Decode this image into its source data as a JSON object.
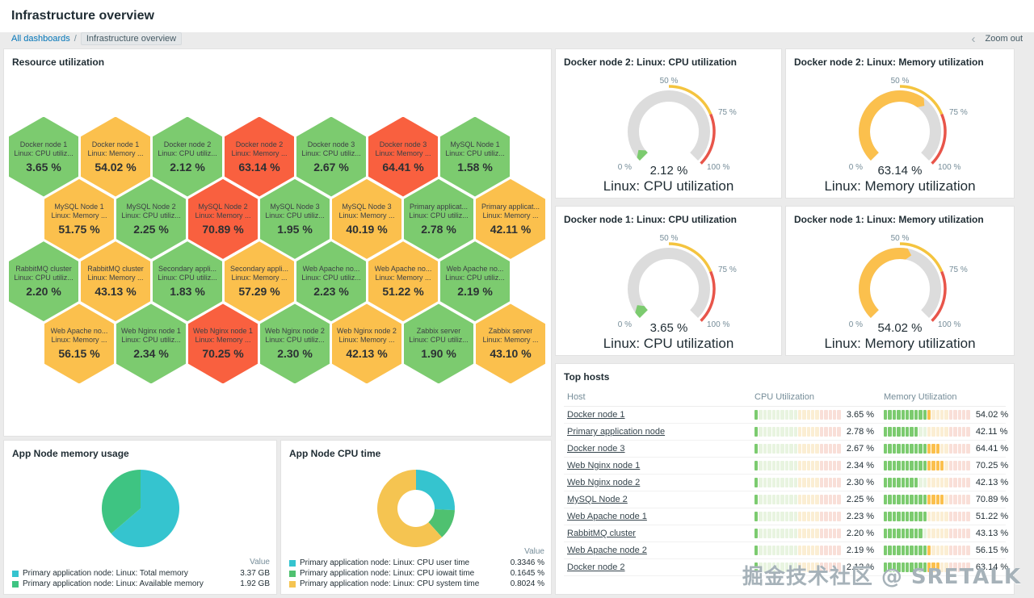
{
  "page": {
    "title": "Infrastructure overview"
  },
  "breadcrumb": {
    "all_dashboards": "All dashboards",
    "separator": "/",
    "current": "Infrastructure overview",
    "chevron": "‹",
    "zoom_out": "Zoom out"
  },
  "colors": {
    "green": "#7CCB6F",
    "orange": "#FBC04D",
    "red": "#F9603F",
    "pale_green": "#E8F4E0",
    "pale_orange": "#FBEED3",
    "pale_red": "#F9DFD8",
    "gauge_track": "#DCDCDC",
    "threshold_warn": "#F4C43F",
    "threshold_high": "#E8554A"
  },
  "honeycomb": {
    "title": "Resource utilization",
    "cells": [
      {
        "host": "Docker node 1",
        "item": "Linux: CPU utiliz...",
        "value": "3.65 %",
        "level": "green"
      },
      {
        "host": "Docker node 1",
        "item": "Linux: Memory ...",
        "value": "54.02 %",
        "level": "orange"
      },
      {
        "host": "Docker node 2",
        "item": "Linux: CPU utiliz...",
        "value": "2.12 %",
        "level": "green"
      },
      {
        "host": "Docker node 2",
        "item": "Linux: Memory ...",
        "value": "63.14 %",
        "level": "red"
      },
      {
        "host": "Docker node 3",
        "item": "Linux: CPU utiliz...",
        "value": "2.67 %",
        "level": "green"
      },
      {
        "host": "Docker node 3",
        "item": "Linux: Memory ...",
        "value": "64.41 %",
        "level": "red"
      },
      {
        "host": "MySQL Node 1",
        "item": "Linux: CPU utiliz...",
        "value": "1.58 %",
        "level": "green"
      },
      {
        "host": "MySQL Node 1",
        "item": "Linux: Memory ...",
        "value": "51.75 %",
        "level": "orange"
      },
      {
        "host": "MySQL Node 2",
        "item": "Linux: CPU utiliz...",
        "value": "2.25 %",
        "level": "green"
      },
      {
        "host": "MySQL Node 2",
        "item": "Linux: Memory ...",
        "value": "70.89 %",
        "level": "red"
      },
      {
        "host": "MySQL Node 3",
        "item": "Linux: CPU utiliz...",
        "value": "1.95 %",
        "level": "green"
      },
      {
        "host": "MySQL Node 3",
        "item": "Linux: Memory ...",
        "value": "40.19 %",
        "level": "orange"
      },
      {
        "host": "Primary applicat...",
        "item": "Linux: CPU utiliz...",
        "value": "2.78 %",
        "level": "green"
      },
      {
        "host": "Primary applicat...",
        "item": "Linux: Memory ...",
        "value": "42.11 %",
        "level": "orange"
      },
      {
        "host": "RabbitMQ cluster",
        "item": "Linux: CPU utiliz...",
        "value": "2.20 %",
        "level": "green"
      },
      {
        "host": "RabbitMQ cluster",
        "item": "Linux: Memory ...",
        "value": "43.13 %",
        "level": "orange"
      },
      {
        "host": "Secondary appli...",
        "item": "Linux: CPU utiliz...",
        "value": "1.83 %",
        "level": "green"
      },
      {
        "host": "Secondary appli...",
        "item": "Linux: Memory ...",
        "value": "57.29 %",
        "level": "orange"
      },
      {
        "host": "Web Apache no...",
        "item": "Linux: CPU utiliz...",
        "value": "2.23 %",
        "level": "green"
      },
      {
        "host": "Web Apache no...",
        "item": "Linux: Memory ...",
        "value": "51.22 %",
        "level": "orange"
      },
      {
        "host": "Web Apache no...",
        "item": "Linux: CPU utiliz...",
        "value": "2.19 %",
        "level": "green"
      },
      {
        "host": "Web Apache no...",
        "item": "Linux: Memory ...",
        "value": "56.15 %",
        "level": "orange"
      },
      {
        "host": "Web Nginx node 1",
        "item": "Linux: CPU utiliz...",
        "value": "2.34 %",
        "level": "green"
      },
      {
        "host": "Web Nginx node 1",
        "item": "Linux: Memory ...",
        "value": "70.25 %",
        "level": "red"
      },
      {
        "host": "Web Nginx node 2",
        "item": "Linux: CPU utiliz...",
        "value": "2.30 %",
        "level": "green"
      },
      {
        "host": "Web Nginx node 2",
        "item": "Linux: Memory ...",
        "value": "42.13 %",
        "level": "orange"
      },
      {
        "host": "Zabbix server",
        "item": "Linux: CPU utiliz...",
        "value": "1.90 %",
        "level": "green"
      },
      {
        "host": "Zabbix server",
        "item": "Linux: Memory ...",
        "value": "43.10 %",
        "level": "orange"
      }
    ]
  },
  "gauges": [
    {
      "title": "Docker node 2: Linux: CPU utilization",
      "value": 2.12,
      "value_label": "2.12 %",
      "footer": "Linux: CPU utilization",
      "level": "green",
      "ticks": [
        "0 %",
        "50 %",
        "75 %",
        "100 %"
      ]
    },
    {
      "title": "Docker node 2: Linux: Memory utilization",
      "value": 63.14,
      "value_label": "63.14 %",
      "footer": "Linux: Memory utilization",
      "level": "orange",
      "ticks": [
        "0 %",
        "50 %",
        "75 %",
        "100 %"
      ]
    },
    {
      "title": "Docker node 1: Linux: CPU utilization",
      "value": 3.65,
      "value_label": "3.65 %",
      "footer": "Linux: CPU utilization",
      "level": "green",
      "ticks": [
        "0 %",
        "50 %",
        "75 %",
        "100 %"
      ]
    },
    {
      "title": "Docker node 1: Linux: Memory utilization",
      "value": 54.02,
      "value_label": "54.02 %",
      "footer": "Linux: Memory utilization",
      "level": "orange",
      "ticks": [
        "0 %",
        "50 %",
        "75 %",
        "100 %"
      ]
    }
  ],
  "top_hosts": {
    "title": "Top hosts",
    "columns": [
      "Host",
      "CPU Utilization",
      "Memory Utilization"
    ],
    "rows": [
      {
        "host": "Docker node 1",
        "cpu": 3.65,
        "cpu_label": "3.65 %",
        "mem": 54.02,
        "mem_label": "54.02 %"
      },
      {
        "host": "Primary application node",
        "cpu": 2.78,
        "cpu_label": "2.78 %",
        "mem": 42.11,
        "mem_label": "42.11 %"
      },
      {
        "host": "Docker node 3",
        "cpu": 2.67,
        "cpu_label": "2.67 %",
        "mem": 64.41,
        "mem_label": "64.41 %"
      },
      {
        "host": "Web Nginx node 1",
        "cpu": 2.34,
        "cpu_label": "2.34 %",
        "mem": 70.25,
        "mem_label": "70.25 %"
      },
      {
        "host": "Web Nginx node 2",
        "cpu": 2.3,
        "cpu_label": "2.30 %",
        "mem": 42.13,
        "mem_label": "42.13 %"
      },
      {
        "host": "MySQL Node 2",
        "cpu": 2.25,
        "cpu_label": "2.25 %",
        "mem": 70.89,
        "mem_label": "70.89 %"
      },
      {
        "host": "Web Apache node 1",
        "cpu": 2.23,
        "cpu_label": "2.23 %",
        "mem": 51.22,
        "mem_label": "51.22 %"
      },
      {
        "host": "RabbitMQ cluster",
        "cpu": 2.2,
        "cpu_label": "2.20 %",
        "mem": 43.13,
        "mem_label": "43.13 %"
      },
      {
        "host": "Web Apache node 2",
        "cpu": 2.19,
        "cpu_label": "2.19 %",
        "mem": 56.15,
        "mem_label": "56.15 %"
      },
      {
        "host": "Docker node 2",
        "cpu": 2.12,
        "cpu_label": "2.12 %",
        "mem": 63.14,
        "mem_label": "63.14 %"
      }
    ]
  },
  "memory_chart": {
    "title": "App Node memory usage",
    "type": "pie",
    "value_header": "Value",
    "items": [
      {
        "label": "Primary application node: Linux: Total memory",
        "value": 3.37,
        "value_label": "3.37 GB",
        "color": "#35C4CF"
      },
      {
        "label": "Primary application node: Linux: Available memory",
        "value": 1.92,
        "value_label": "1.92 GB",
        "color": "#3EC482"
      }
    ]
  },
  "cpu_chart": {
    "title": "App Node CPU time",
    "type": "donut",
    "value_header": "Value",
    "items": [
      {
        "label": "Primary application node: Linux: CPU user time",
        "value": 0.3346,
        "value_label": "0.3346 %",
        "color": "#35C4CF"
      },
      {
        "label": "Primary application node: Linux: CPU iowait time",
        "value": 0.1645,
        "value_label": "0.1645 %",
        "color": "#4FC170"
      },
      {
        "label": "Primary application node: Linux: CPU system time",
        "value": 0.8024,
        "value_label": "0.8024 %",
        "color": "#F5C451"
      }
    ]
  },
  "chart_data": [
    {
      "type": "pie",
      "title": "App Node memory usage",
      "labels": [
        "Primary application node: Linux: Total memory",
        "Primary application node: Linux: Available memory"
      ],
      "values": [
        3.37,
        1.92
      ],
      "unit": "GB",
      "legend_position": "bottom"
    },
    {
      "type": "pie",
      "title": "App Node CPU time",
      "donut": true,
      "labels": [
        "Primary application node: Linux: CPU user time",
        "Primary application node: Linux: CPU iowait time",
        "Primary application node: Linux: CPU system time"
      ],
      "values": [
        0.3346,
        0.1645,
        0.8024
      ],
      "unit": "%",
      "legend_position": "bottom"
    },
    {
      "type": "gauge",
      "title": "Docker node 2: Linux: CPU utilization",
      "value": 2.12,
      "range": [
        0,
        100
      ],
      "ticks": [
        0,
        50,
        75,
        100
      ]
    },
    {
      "type": "gauge",
      "title": "Docker node 2: Linux: Memory utilization",
      "value": 63.14,
      "range": [
        0,
        100
      ],
      "ticks": [
        0,
        50,
        75,
        100
      ]
    },
    {
      "type": "gauge",
      "title": "Docker node 1: Linux: CPU utilization",
      "value": 3.65,
      "range": [
        0,
        100
      ],
      "ticks": [
        0,
        50,
        75,
        100
      ]
    },
    {
      "type": "gauge",
      "title": "Docker node 1: Linux: Memory utilization",
      "value": 54.02,
      "range": [
        0,
        100
      ],
      "ticks": [
        0,
        50,
        75,
        100
      ]
    }
  ],
  "watermark": "掘金技术社区 @ SRETALK"
}
